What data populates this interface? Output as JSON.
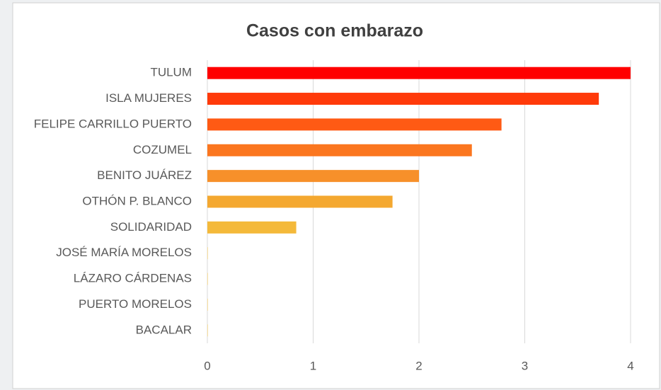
{
  "chart_data": {
    "type": "barh",
    "title": "Casos con embarazo",
    "categories": [
      "TULUM",
      "ISLA MUJERES",
      "FELIPE CARRILLO PUERTO",
      "COZUMEL",
      "BENITO JUÁREZ",
      "OTHÓN P. BLANCO",
      "SOLIDARIDAD",
      "JOSÉ MARÍA MORELOS",
      "LÁZARO CÁRDENAS",
      "PUERTO MORELOS",
      "BACALAR"
    ],
    "values": [
      4,
      3.7,
      2.78,
      2.5,
      2,
      1.75,
      0.84,
      0,
      0,
      0,
      0
    ],
    "colors": [
      "#ff0000",
      "#ff3a0a",
      "#ff5a14",
      "#fb761f",
      "#f7902a",
      "#f4a830",
      "#f4b93a",
      "#f4c040",
      "#f4c040",
      "#f4c040",
      "#f4c040"
    ],
    "xlim": [
      0,
      4
    ],
    "xticks": [
      0,
      1,
      2,
      3,
      4
    ],
    "grid": true
  }
}
